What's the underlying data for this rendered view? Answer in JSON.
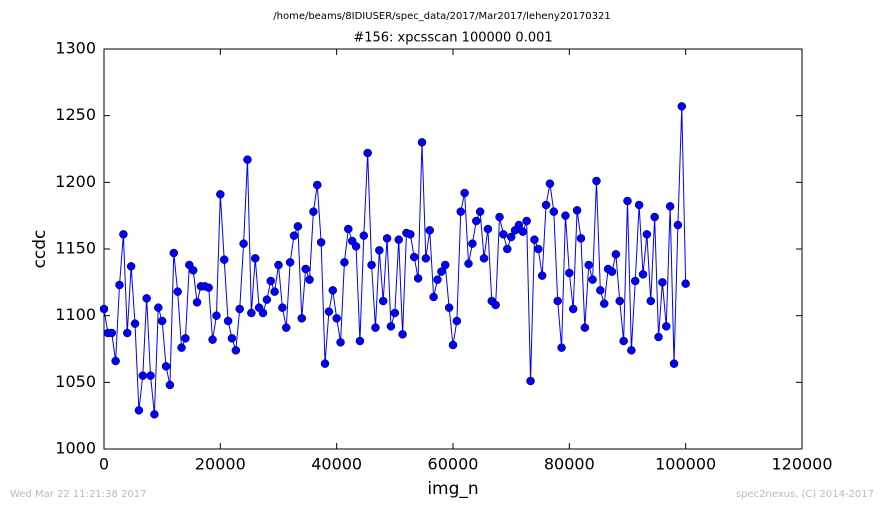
{
  "chart_data": {
    "type": "line",
    "suptitle": "/home/beams/8IDIUSER/spec_data/2017/Mar2017/leheny20170321",
    "title": "#156: xpcsscan 100000 0.001",
    "x_label": "img_n",
    "y_label": "ccdc",
    "footer_left": "Wed Mar 22 11:21:38 2017",
    "footer_right": "spec2nexus, (C) 2014-2017",
    "color": "#0000ff",
    "marker": "circle",
    "x": [
      0,
      667,
      1333,
      2000,
      2667,
      3333,
      4000,
      4667,
      5333,
      6000,
      6667,
      7333,
      8000,
      8667,
      9333,
      10000,
      10667,
      11333,
      12000,
      12667,
      13333,
      14000,
      14667,
      15333,
      16000,
      16667,
      17333,
      18000,
      18667,
      19333,
      20000,
      20667,
      21333,
      22000,
      22667,
      23333,
      24000,
      24667,
      25333,
      26000,
      26667,
      27333,
      28000,
      28667,
      29333,
      30000,
      30667,
      31333,
      32000,
      32667,
      33333,
      34000,
      34667,
      35333,
      36000,
      36667,
      37333,
      38000,
      38667,
      39333,
      40000,
      40667,
      41333,
      42000,
      42667,
      43333,
      44000,
      44667,
      45333,
      46000,
      46667,
      47333,
      48000,
      48667,
      49333,
      50000,
      50667,
      51333,
      52000,
      52667,
      53333,
      54000,
      54667,
      55333,
      56000,
      56667,
      57333,
      58000,
      58667,
      59333,
      60000,
      60667,
      61333,
      62000,
      62667,
      63333,
      64000,
      64667,
      65333,
      66000,
      66667,
      67333,
      68000,
      68667,
      69333,
      70000,
      70667,
      71333,
      72000,
      72667,
      73333,
      74000,
      74667,
      75333,
      76000,
      76667,
      77333,
      78000,
      78667,
      79333,
      80000,
      80667,
      81333,
      82000,
      82667,
      83333,
      84000,
      84667,
      85333,
      86000,
      86667,
      87333,
      88000,
      88667,
      89333,
      90000,
      90667,
      91333,
      92000,
      92667,
      93333,
      94000,
      94667,
      95333,
      96000,
      96667,
      97333,
      98000,
      98667,
      99333,
      100000
    ],
    "values": [
      1105,
      1087,
      1087,
      1066,
      1123,
      1161,
      1087,
      1137,
      1094,
      1029,
      1055,
      1113,
      1055,
      1026,
      1106,
      1096,
      1062,
      1048,
      1147,
      1118,
      1076,
      1083,
      1138,
      1134,
      1110,
      1122,
      1122,
      1121,
      1082,
      1100,
      1191,
      1142,
      1096,
      1083,
      1074,
      1105,
      1154,
      1217,
      1102,
      1143,
      1106,
      1102,
      1112,
      1126,
      1118,
      1138,
      1106,
      1091,
      1140,
      1160,
      1167,
      1098,
      1135,
      1127,
      1178,
      1198,
      1155,
      1064,
      1103,
      1119,
      1098,
      1080,
      1140,
      1165,
      1156,
      1152,
      1081,
      1160,
      1222,
      1138,
      1091,
      1149,
      1111,
      1158,
      1092,
      1102,
      1157,
      1086,
      1162,
      1161,
      1144,
      1128,
      1230,
      1143,
      1164,
      1114,
      1127,
      1133,
      1138,
      1106,
      1078,
      1096,
      1178,
      1192,
      1139,
      1154,
      1171,
      1178,
      1143,
      1165,
      1111,
      1108,
      1174,
      1161,
      1150,
      1159,
      1164,
      1168,
      1163,
      1171,
      1051,
      1157,
      1150,
      1130,
      1183,
      1199,
      1178,
      1111,
      1076,
      1175,
      1132,
      1105,
      1179,
      1158,
      1091,
      1138,
      1127,
      1201,
      1119,
      1109,
      1135,
      1133,
      1146,
      1111,
      1081,
      1186,
      1074,
      1126,
      1183,
      1131,
      1161,
      1111,
      1174,
      1084,
      1125,
      1092,
      1182,
      1064,
      1168,
      1257,
      1124
    ],
    "xlim": [
      0,
      120000
    ],
    "xticks": [
      0,
      20000,
      40000,
      60000,
      80000,
      100000,
      120000
    ],
    "ylim": [
      1000,
      1300
    ],
    "yticks": [
      1000,
      1050,
      1100,
      1150,
      1200,
      1250,
      1300
    ]
  }
}
